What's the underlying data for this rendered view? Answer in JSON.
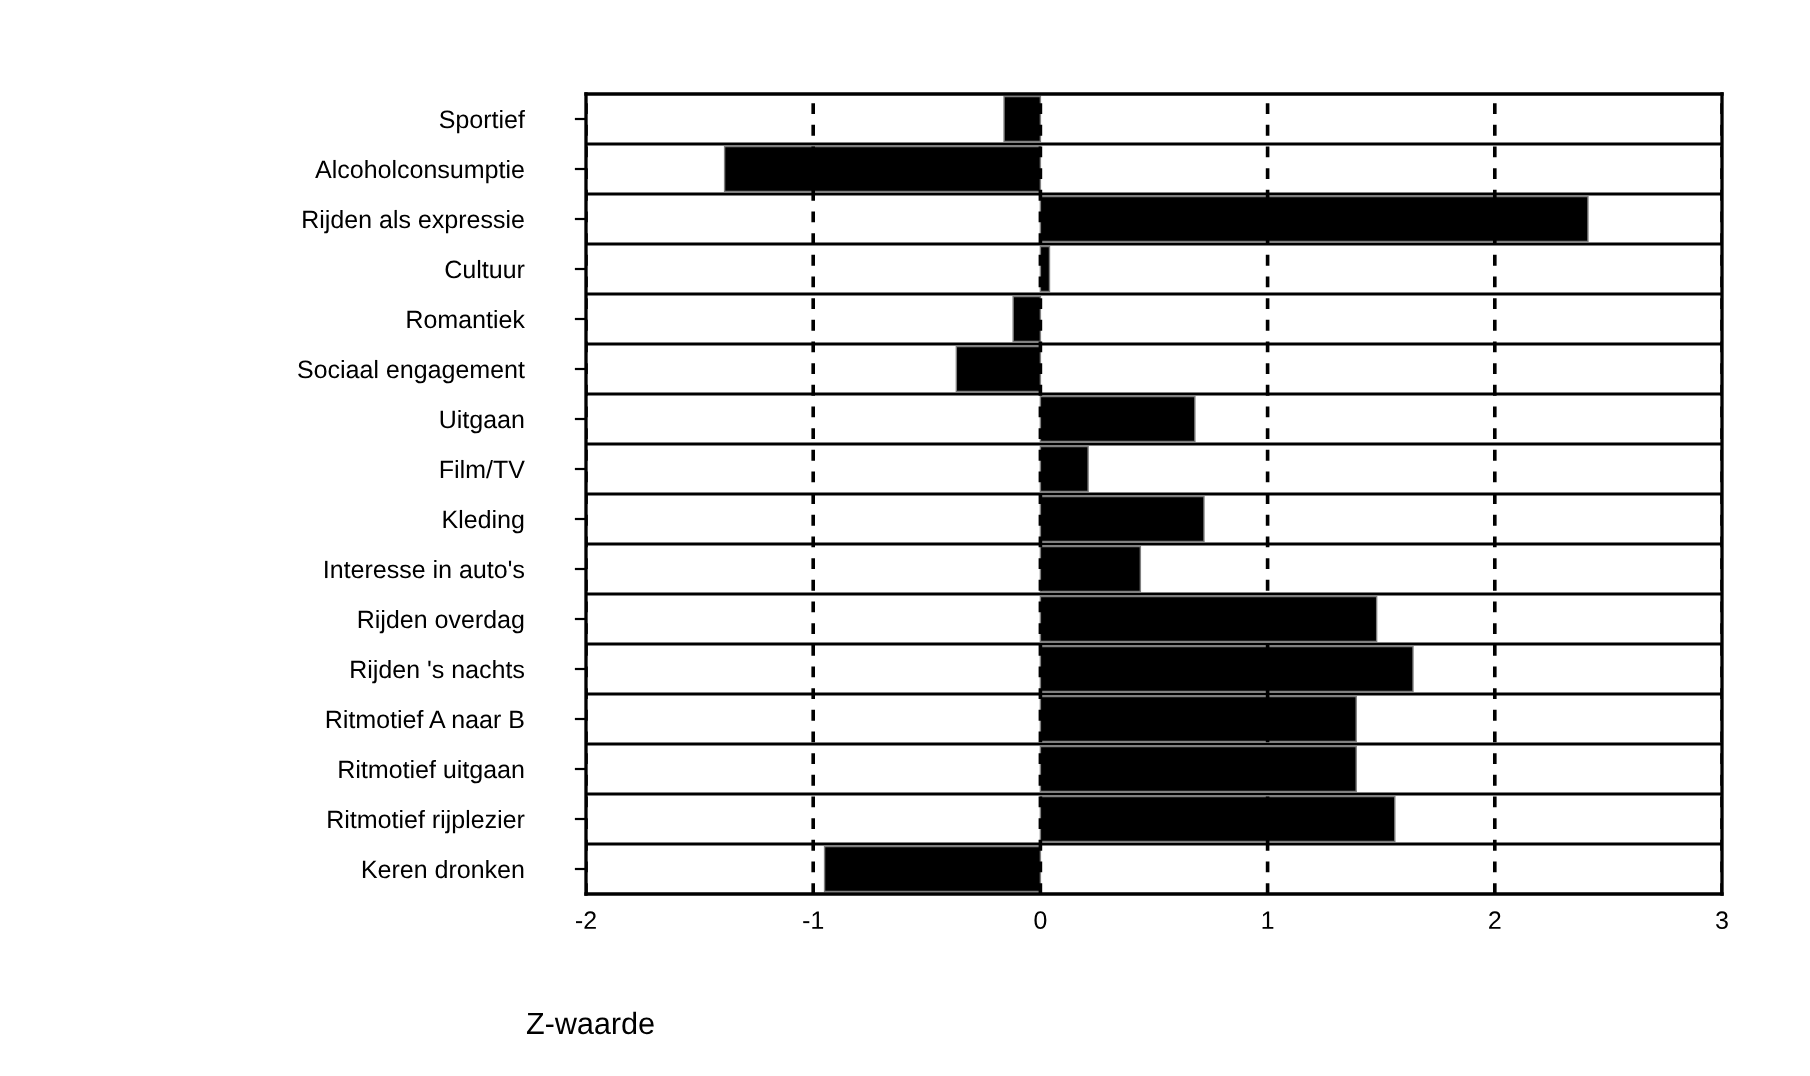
{
  "chart_data": {
    "type": "bar",
    "orientation": "horizontal",
    "xlabel": "Z-waarde",
    "categories": [
      "Sportief",
      "Alcoholconsumptie",
      "Rijden als expressie",
      "Cultuur",
      "Romantiek",
      "Sociaal engagement",
      "Uitgaan",
      "Film/TV",
      "Kleding",
      "Interesse in auto's",
      "Rijden overdag",
      "Rijden 's nachts",
      "Ritmotief A naar B",
      "Ritmotief uitgaan",
      "Ritmotief rijplezier",
      "Keren dronken"
    ],
    "values": [
      -0.16,
      -1.39,
      2.41,
      0.04,
      -0.12,
      -0.37,
      0.68,
      0.21,
      0.72,
      0.44,
      1.48,
      1.64,
      1.39,
      1.39,
      1.56,
      -0.95
    ],
    "color": "#000000",
    "xlim": [
      -2,
      3
    ],
    "xticks": [
      -2,
      -1,
      0,
      1,
      2,
      3
    ],
    "grid": "x",
    "line_style": "dashed"
  }
}
